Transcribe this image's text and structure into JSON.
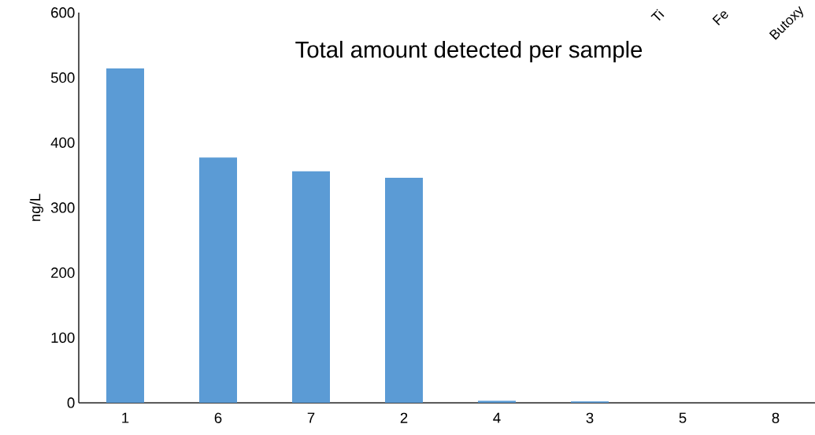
{
  "chart_data": {
    "type": "bar",
    "title": "Total amount detected per sample",
    "ylabel": "ng/L",
    "categories": [
      "1",
      "6",
      "7",
      "2",
      "4",
      "3",
      "5",
      "8"
    ],
    "values": [
      514,
      377,
      356,
      346,
      3,
      2,
      0,
      0
    ],
    "color": "#5b9bd5",
    "ylim": [
      0,
      600
    ],
    "yticks": [
      0,
      100,
      200,
      300,
      400,
      500,
      600
    ],
    "grid": false,
    "annotations": [
      "Ti",
      "Fe",
      "Butoxy"
    ]
  }
}
